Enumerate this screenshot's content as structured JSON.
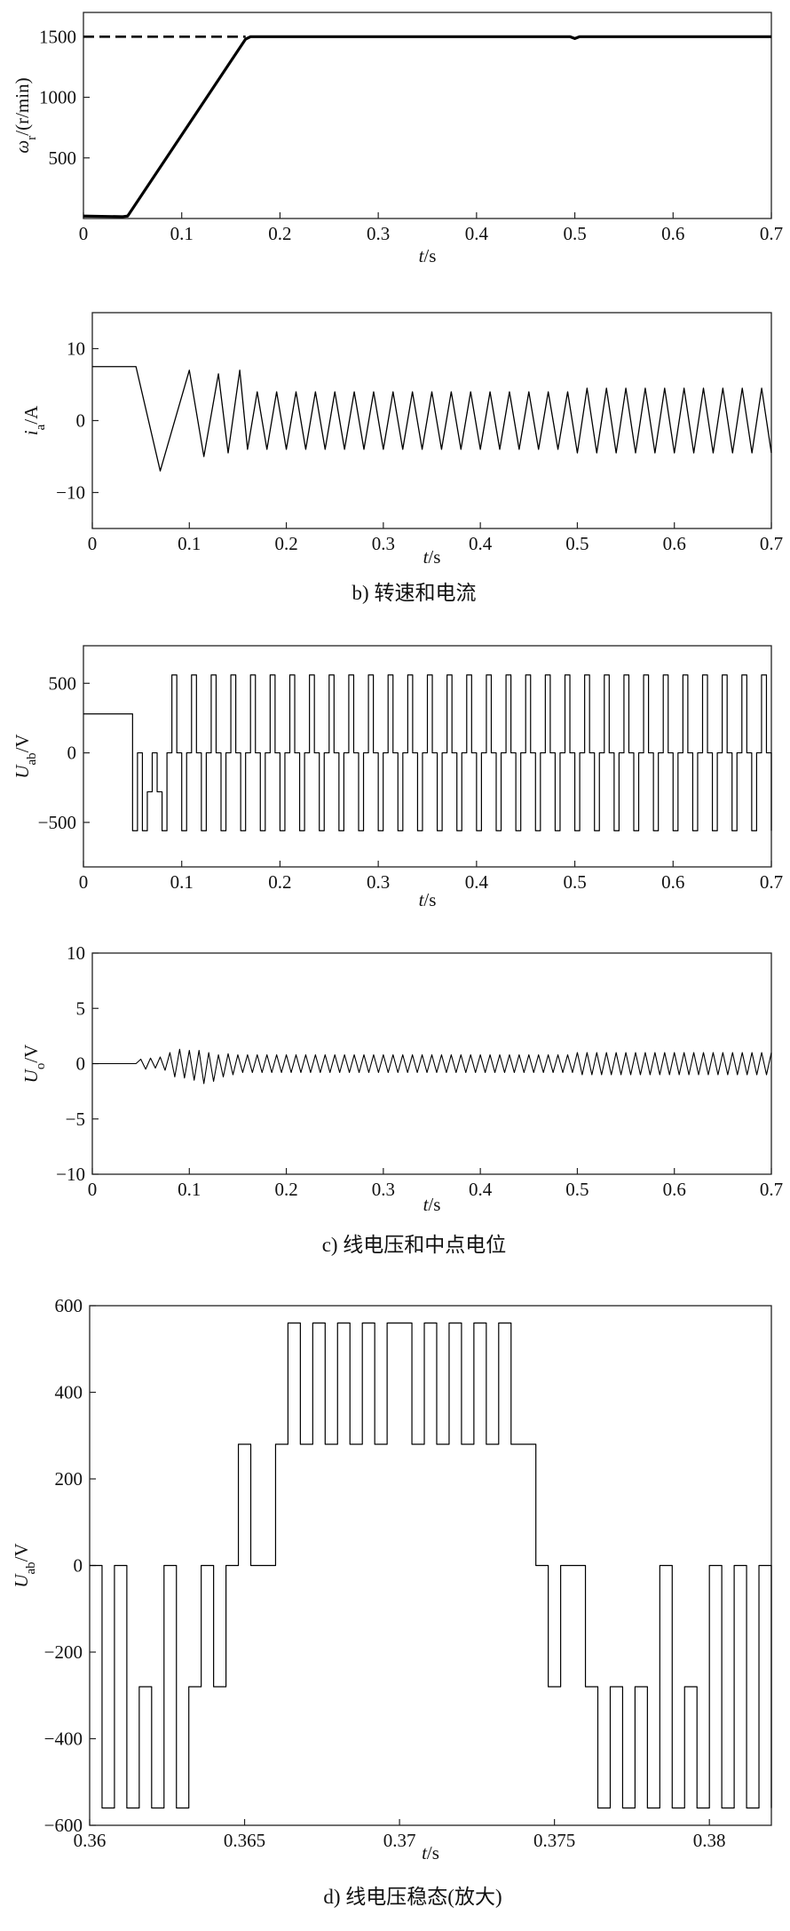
{
  "chart_data": [
    {
      "type": "line",
      "ylabel": {
        "symbol": "ω",
        "sub": "r",
        "unit": "/(r/min)"
      },
      "xlabel": {
        "symbol": "t",
        "unit": "/s"
      },
      "x": [
        0,
        0.04,
        0.045,
        0.165,
        0.17,
        0.3,
        0.495,
        0.5,
        0.505,
        0.7
      ],
      "series": [
        {
          "color": "#000000",
          "values": [
            20,
            15,
            20,
            1480,
            1500,
            1500,
            1500,
            1485,
            1500,
            1500
          ]
        },
        {
          "color": "#000000",
          "dash": true,
          "values": [
            1500,
            1500,
            1500,
            1500,
            null,
            null,
            null,
            null,
            null,
            null
          ]
        }
      ],
      "xlim": [
        0,
        0.7
      ],
      "xticks": [
        0,
        0.1,
        0.2,
        0.3,
        0.4,
        0.5,
        0.6,
        0.7
      ],
      "ylim": [
        0,
        1700
      ],
      "yticks": [
        500,
        1000,
        1500
      ]
    },
    {
      "type": "line",
      "ylabel": {
        "symbol": "i",
        "sub": "a",
        "unit": "/A"
      },
      "xlabel": {
        "symbol": "t",
        "unit": "/s"
      },
      "caption": "b) 转速和电流",
      "x": [
        0,
        0.045,
        0.07,
        0.1,
        0.115,
        0.13,
        0.14,
        0.152,
        0.16,
        0.17,
        0.18,
        0.19,
        0.2,
        0.21,
        0.22,
        0.23,
        0.24,
        0.25,
        0.26,
        0.27,
        0.28,
        0.29,
        0.3,
        0.31,
        0.32,
        0.33,
        0.34,
        0.35,
        0.36,
        0.37,
        0.38,
        0.39,
        0.4,
        0.41,
        0.42,
        0.43,
        0.44,
        0.45,
        0.46,
        0.47,
        0.48,
        0.49,
        0.5,
        0.51,
        0.52,
        0.53,
        0.54,
        0.55,
        0.56,
        0.57,
        0.58,
        0.59,
        0.6,
        0.61,
        0.62,
        0.63,
        0.64,
        0.65,
        0.66,
        0.67,
        0.68,
        0.69,
        0.7
      ],
      "series": [
        {
          "color": "#000000",
          "values": [
            7.5,
            7.5,
            -7,
            7,
            -5,
            6.5,
            -4.5,
            7,
            -4,
            4,
            -4,
            4,
            -4,
            4,
            -4,
            4,
            -4,
            4,
            -4,
            4,
            -4,
            4,
            -4,
            4,
            -4,
            4,
            -4,
            4,
            -4,
            4,
            -4,
            4,
            -4,
            4,
            -4,
            4,
            -4,
            4,
            -4,
            4,
            -4,
            4,
            -4.5,
            4.5,
            -4.5,
            4.5,
            -4.5,
            4.5,
            -4.5,
            4.5,
            -4.5,
            4.5,
            -4.5,
            4.5,
            -4.5,
            4.5,
            -4.5,
            4.5,
            -4.5,
            4.5,
            -4.5,
            4.5,
            -4.5
          ]
        }
      ],
      "xlim": [
        0,
        0.7
      ],
      "xticks": [
        0,
        0.1,
        0.2,
        0.3,
        0.4,
        0.5,
        0.6,
        0.7
      ],
      "ylim": [
        -15,
        15
      ],
      "yticks": [
        {
          "value": -10,
          "label": "−10"
        },
        0,
        10
      ]
    },
    {
      "type": "line",
      "step": true,
      "ylabel": {
        "symbol": "U",
        "sub": "ab",
        "unit": "/V"
      },
      "xlabel": {
        "symbol": "t",
        "unit": "/s"
      },
      "x": [
        0,
        0.005,
        0.01,
        0.015,
        0.02,
        0.025,
        0.03,
        0.035,
        0.04,
        0.045,
        0.05,
        0.055,
        0.06,
        0.065,
        0.07,
        0.075,
        0.08,
        0.085,
        0.09,
        0.095,
        0.1,
        0.105,
        0.11,
        0.115,
        0.12,
        0.125,
        0.13,
        0.135,
        0.14,
        0.145,
        0.15,
        0.155,
        0.16,
        0.165,
        0.17,
        0.175,
        0.18,
        0.185,
        0.19,
        0.195,
        0.2,
        0.205,
        0.21,
        0.215,
        0.22,
        0.225,
        0.23,
        0.235,
        0.24,
        0.245,
        0.25,
        0.255,
        0.26,
        0.265,
        0.27,
        0.275,
        0.28,
        0.285,
        0.29,
        0.295,
        0.3,
        0.305,
        0.31,
        0.315,
        0.32,
        0.325,
        0.33,
        0.335,
        0.34,
        0.345,
        0.35,
        0.355,
        0.36,
        0.365,
        0.37,
        0.375,
        0.38,
        0.385,
        0.39,
        0.395,
        0.4,
        0.405,
        0.41,
        0.415,
        0.42,
        0.425,
        0.43,
        0.435,
        0.44,
        0.445,
        0.45,
        0.455,
        0.46,
        0.465,
        0.47,
        0.475,
        0.48,
        0.485,
        0.49,
        0.495,
        0.5,
        0.505,
        0.51,
        0.515,
        0.52,
        0.525,
        0.53,
        0.535,
        0.54,
        0.545,
        0.55,
        0.555,
        0.56,
        0.565,
        0.57,
        0.575,
        0.58,
        0.585,
        0.59,
        0.595,
        0.6,
        0.605,
        0.61,
        0.615,
        0.62,
        0.625,
        0.63,
        0.635,
        0.64,
        0.645,
        0.65,
        0.655,
        0.66,
        0.665,
        0.67,
        0.675,
        0.68,
        0.685,
        0.69,
        0.695,
        0.7
      ],
      "series": [
        {
          "color": "#000000",
          "values": [
            280,
            280,
            280,
            280,
            280,
            280,
            280,
            280,
            280,
            280,
            -560,
            0,
            -560,
            -280,
            0,
            -280,
            -560,
            0,
            560,
            0,
            -560,
            0,
            560,
            0,
            -560,
            0,
            560,
            0,
            -560,
            0,
            560,
            0,
            -560,
            0,
            560,
            0,
            -560,
            0,
            560,
            0,
            -560,
            0,
            560,
            0,
            -560,
            0,
            560,
            0,
            -560,
            0,
            560,
            0,
            -560,
            0,
            560,
            0,
            -560,
            0,
            560,
            0,
            -560,
            0,
            560,
            0,
            -560,
            0,
            560,
            0,
            -560,
            0,
            560,
            0,
            -560,
            0,
            560,
            0,
            -560,
            0,
            560,
            0,
            -560,
            0,
            560,
            0,
            -560,
            0,
            560,
            0,
            -560,
            0,
            560,
            0,
            -560,
            0,
            560,
            0,
            -560,
            0,
            560,
            0,
            -560,
            0,
            560,
            0,
            -560,
            0,
            560,
            0,
            -560,
            0,
            560,
            0,
            -560,
            0,
            560,
            0,
            -560,
            0,
            560,
            0,
            -560,
            0,
            560,
            0,
            -560,
            0,
            560,
            0,
            -560,
            0,
            560,
            0,
            -560,
            0,
            560,
            0,
            -560,
            0,
            560,
            0,
            -560
          ]
        }
      ],
      "xlim": [
        0,
        0.7
      ],
      "xticks": [
        0,
        0.1,
        0.2,
        0.3,
        0.4,
        0.5,
        0.6,
        0.7
      ],
      "ylim": [
        -820,
        770
      ],
      "yticks": [
        {
          "value": -500,
          "label": "−500"
        },
        0,
        500
      ]
    },
    {
      "type": "line",
      "ylabel": {
        "symbol": "U",
        "sub": "o",
        "unit": "/V"
      },
      "xlabel": {
        "symbol": "t",
        "unit": "/s"
      },
      "caption": "c) 线电压和中点电位",
      "x": [
        0,
        0.005,
        0.01,
        0.015,
        0.02,
        0.025,
        0.03,
        0.035,
        0.04,
        0.045,
        0.05,
        0.055,
        0.06,
        0.065,
        0.07,
        0.075,
        0.08,
        0.085,
        0.09,
        0.095,
        0.1,
        0.105,
        0.11,
        0.115,
        0.12,
        0.125,
        0.13,
        0.135,
        0.14,
        0.145,
        0.15,
        0.155,
        0.16,
        0.165,
        0.17,
        0.175,
        0.18,
        0.185,
        0.19,
        0.195,
        0.2,
        0.205,
        0.21,
        0.215,
        0.22,
        0.225,
        0.23,
        0.235,
        0.24,
        0.245,
        0.25,
        0.255,
        0.26,
        0.265,
        0.27,
        0.275,
        0.28,
        0.285,
        0.29,
        0.295,
        0.3,
        0.305,
        0.31,
        0.315,
        0.32,
        0.325,
        0.33,
        0.335,
        0.34,
        0.345,
        0.35,
        0.355,
        0.36,
        0.365,
        0.37,
        0.375,
        0.38,
        0.385,
        0.39,
        0.395,
        0.4,
        0.405,
        0.41,
        0.415,
        0.42,
        0.425,
        0.43,
        0.435,
        0.44,
        0.445,
        0.45,
        0.455,
        0.46,
        0.465,
        0.47,
        0.475,
        0.48,
        0.485,
        0.49,
        0.495,
        0.5,
        0.505,
        0.51,
        0.515,
        0.52,
        0.525,
        0.53,
        0.535,
        0.54,
        0.545,
        0.55,
        0.555,
        0.56,
        0.565,
        0.57,
        0.575,
        0.58,
        0.585,
        0.59,
        0.595,
        0.6,
        0.605,
        0.61,
        0.615,
        0.62,
        0.625,
        0.63,
        0.635,
        0.64,
        0.645,
        0.65,
        0.655,
        0.66,
        0.665,
        0.67,
        0.675,
        0.68,
        0.685,
        0.69,
        0.695,
        0.7
      ],
      "series": [
        {
          "color": "#000000",
          "values": [
            0,
            0,
            0,
            0,
            0,
            0,
            0,
            0,
            0,
            0,
            0.4,
            -0.5,
            0.5,
            -0.4,
            0.6,
            -0.6,
            1,
            -1.2,
            1.3,
            -1.3,
            1.2,
            -1.5,
            1.2,
            -1.8,
            1,
            -1.6,
            0.8,
            -1.2,
            0.9,
            -1,
            0.8,
            -0.8,
            0.8,
            -0.8,
            0.8,
            -0.8,
            0.8,
            -0.8,
            0.8,
            -0.8,
            0.8,
            -0.8,
            0.8,
            -0.8,
            0.8,
            -0.8,
            0.8,
            -0.8,
            0.8,
            -0.8,
            0.8,
            -0.8,
            0.8,
            -0.8,
            0.8,
            -0.8,
            0.8,
            -0.8,
            0.8,
            -0.8,
            0.8,
            -0.8,
            0.8,
            -0.8,
            0.8,
            -0.8,
            0.8,
            -0.8,
            0.8,
            -0.8,
            0.8,
            -0.8,
            0.8,
            -0.8,
            0.8,
            -0.8,
            0.8,
            -0.8,
            0.8,
            -0.8,
            0.8,
            -0.8,
            0.8,
            -0.8,
            0.8,
            -0.8,
            0.8,
            -0.8,
            0.8,
            -0.8,
            0.8,
            -0.8,
            0.8,
            -0.8,
            0.8,
            -0.8,
            0.8,
            -0.8,
            0.8,
            -0.8,
            1,
            -1,
            1,
            -1,
            1,
            -1,
            1,
            -1,
            1,
            -1,
            1,
            -1,
            1,
            -1,
            1,
            -1,
            1,
            -1,
            1,
            -1,
            1,
            -1,
            1,
            -1,
            1,
            -1,
            1,
            -1,
            1,
            -1,
            1,
            -1,
            1,
            -1,
            1,
            -1,
            1,
            -1,
            1,
            -1,
            1
          ]
        }
      ],
      "xlim": [
        0,
        0.7
      ],
      "xticks": [
        0,
        0.1,
        0.2,
        0.3,
        0.4,
        0.5,
        0.6,
        0.7
      ],
      "ylim": [
        -10,
        10
      ],
      "yticks": [
        {
          "value": -10,
          "label": "−10"
        },
        {
          "value": -5,
          "label": "−5"
        },
        0,
        5,
        10
      ]
    },
    {
      "type": "line",
      "step": true,
      "ylabel": {
        "symbol": "U",
        "sub": "ab",
        "unit": "/V"
      },
      "xlabel": {
        "symbol": "t",
        "unit": "/s"
      },
      "caption": "d) 线电压稳态(放大)",
      "x": [
        0.36,
        0.3604,
        0.3608,
        0.3612,
        0.3616,
        0.362,
        0.3624,
        0.3628,
        0.3632,
        0.3636,
        0.364,
        0.3644,
        0.3648,
        0.3652,
        0.3656,
        0.366,
        0.3664,
        0.3668,
        0.3672,
        0.3676,
        0.368,
        0.3684,
        0.3688,
        0.3692,
        0.3696,
        0.37,
        0.3704,
        0.3708,
        0.3712,
        0.3716,
        0.372,
        0.3724,
        0.3728,
        0.3732,
        0.3736,
        0.374,
        0.3744,
        0.3748,
        0.3752,
        0.3756,
        0.376,
        0.3764,
        0.3768,
        0.3772,
        0.3776,
        0.378,
        0.3784,
        0.3788,
        0.3792,
        0.3796,
        0.38,
        0.3804,
        0.3808,
        0.3812,
        0.3816,
        0.382
      ],
      "series": [
        {
          "color": "#000000",
          "values": [
            0,
            -560,
            0,
            -560,
            -280,
            -560,
            0,
            -560,
            -280,
            0,
            -280,
            0,
            280,
            0,
            0,
            280,
            560,
            280,
            560,
            280,
            560,
            280,
            560,
            280,
            560,
            560,
            280,
            560,
            280,
            560,
            280,
            560,
            280,
            560,
            280,
            280,
            0,
            -280,
            0,
            0,
            -280,
            -560,
            -280,
            -560,
            -280,
            -560,
            0,
            -560,
            -280,
            -560,
            0,
            -560,
            0,
            -560,
            0,
            -560
          ]
        }
      ],
      "xlim": [
        0.36,
        0.382
      ],
      "xticks": [
        0.36,
        0.365,
        0.37,
        0.375,
        0.38
      ],
      "ylim": [
        -600,
        600
      ],
      "yticks": [
        {
          "value": -600,
          "label": "−600"
        },
        {
          "value": -400,
          "label": "−400"
        },
        {
          "value": -200,
          "label": "−200"
        },
        0,
        200,
        400,
        600
      ]
    }
  ]
}
